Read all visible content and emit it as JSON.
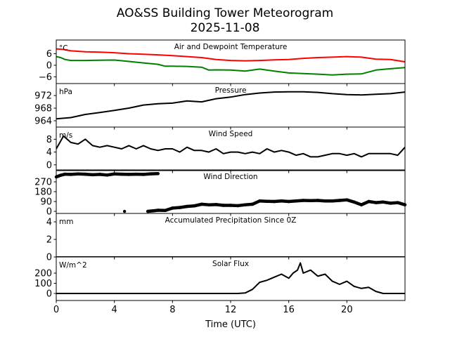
{
  "title": "AO&SS Building Tower Meteorogram",
  "subtitle": "2025-11-08",
  "chart_data": {
    "type": "line",
    "xlabel": "Time (UTC)",
    "xlim": [
      0,
      24
    ],
    "xticks": [
      0,
      4,
      8,
      12,
      16,
      20
    ],
    "xtick_labels": [
      "0",
      "4",
      "8",
      "12",
      "16",
      "20"
    ],
    "panels": [
      {
        "title": "Air and Dewpoint Temperature",
        "unit": "°C",
        "ylim": [
          -9.5,
          13.1
        ],
        "yticks": [
          6,
          0,
          -6
        ],
        "ytick_labels": [
          "6",
          "0",
          "−6"
        ],
        "series": [
          {
            "name": "Air Temperature",
            "color": "#ff0000",
            "x": [
              0,
              0.5,
              1,
              2,
              3,
              4,
              5,
              6,
              7,
              8,
              9,
              10,
              11,
              12,
              13,
              14,
              15,
              16,
              17,
              18,
              19,
              20,
              21,
              22,
              23,
              24
            ],
            "y": [
              8.5,
              8.2,
              7.5,
              7,
              6.8,
              6.5,
              6,
              5.7,
              5.4,
              5,
              4.5,
              4,
              3,
              2.5,
              2.3,
              2.5,
              2.8,
              3,
              3.6,
              4,
              4.2,
              4.5,
              4.2,
              3.2,
              3,
              1.8
            ]
          },
          {
            "name": "Dewpoint",
            "color": "#008000",
            "x": [
              0,
              0.3,
              0.6,
              1,
              2,
              3,
              4,
              5,
              6,
              7,
              7.5,
              8,
              9,
              10,
              10.5,
              11,
              12,
              13,
              14,
              15,
              16,
              17,
              18,
              19,
              20,
              21,
              22,
              23,
              24
            ],
            "y": [
              4.5,
              4,
              3,
              2.5,
              2.5,
              2.6,
              2.7,
              2,
              1.2,
              0.5,
              -0.5,
              -0.5,
              -0.6,
              -1,
              -2.5,
              -2.4,
              -2.5,
              -3,
              -2,
              -3,
              -4,
              -4.3,
              -4.6,
              -5,
              -4.6,
              -4.5,
              -2.5,
              -1.8,
              -1.2
            ]
          }
        ]
      },
      {
        "title": "Pressure",
        "unit": "hPa",
        "ylim": [
          962,
          975.8
        ],
        "yticks": [
          972,
          968,
          964
        ],
        "ytick_labels": [
          "972",
          "968",
          "964"
        ],
        "series": [
          {
            "name": "Pressure",
            "color": "#000000",
            "x": [
              0,
              1,
              2,
              3,
              4,
              5,
              6,
              7,
              8,
              9,
              10,
              11,
              12,
              13,
              14,
              15,
              16,
              17,
              18,
              19,
              20,
              21,
              22,
              23,
              24
            ],
            "y": [
              964.6,
              965,
              966,
              966.6,
              967.3,
              968,
              969,
              969.4,
              969.6,
              970.3,
              970,
              971,
              971.5,
              972.3,
              972.8,
              973.1,
              973.2,
              973.2,
              973,
              972.6,
              972.3,
              972.2,
              972.4,
              972.6,
              973.1
            ]
          }
        ]
      },
      {
        "title": "Wind Speed",
        "unit": "m/s",
        "ylim": [
          -1.8,
          11.8
        ],
        "yticks": [
          8,
          4,
          0
        ],
        "ytick_labels": [
          "8",
          "4",
          "0"
        ],
        "series": [
          {
            "name": "Wind Speed",
            "color": "#000000",
            "x": [
              0,
              0.5,
              1,
              1.5,
              2,
              2.5,
              3,
              3.5,
              4,
              4.5,
              5,
              5.5,
              6,
              6.5,
              7,
              7.5,
              8,
              8.5,
              9,
              9.5,
              10,
              10.5,
              11,
              11.5,
              12,
              12.5,
              13,
              13.5,
              14,
              14.5,
              15,
              15.5,
              16,
              16.5,
              17,
              17.5,
              18,
              18.5,
              19,
              19.5,
              20,
              20.5,
              21,
              21.5,
              22,
              22.5,
              23,
              23.5,
              24
            ],
            "y": [
              5,
              9,
              7,
              6.5,
              8,
              6,
              5.5,
              6,
              5.5,
              5,
              6,
              5,
              6,
              5,
              4.5,
              5,
              5,
              4,
              5.5,
              4.5,
              4.5,
              4,
              5,
              3.5,
              4,
              4,
              3.5,
              4,
              3.5,
              5,
              4,
              4.5,
              4,
              3,
              3.5,
              2.5,
              2.5,
              3,
              3.5,
              3.5,
              3,
              3.5,
              2.5,
              3.5,
              3.5,
              3.5,
              3.5,
              3,
              5.5
            ]
          }
        ]
      },
      {
        "title": "Wind Direction",
        "unit": "",
        "ylim": [
          -19,
          379
        ],
        "yticks": [
          270,
          180,
          90,
          0
        ],
        "ytick_labels": [
          "270",
          "180",
          "90",
          "0"
        ],
        "style": "scatter",
        "series": [
          {
            "name": "Wind Direction",
            "color": "#000000",
            "x": [
              0,
              0.3,
              0.6,
              1,
              1.5,
              2,
              2.5,
              3,
              3.5,
              4,
              4.5,
              5,
              5.5,
              6,
              6.5,
              7,
              4.7,
              6.3,
              6.7,
              7,
              7.5,
              8,
              8.5,
              9,
              9.5,
              10,
              10.5,
              11,
              11.5,
              12,
              12.5,
              13,
              13.5,
              14,
              14.5,
              15,
              15.5,
              16,
              16.5,
              17,
              17.5,
              18,
              18.5,
              19,
              19.5,
              20,
              20.5,
              21,
              21.5,
              22,
              22.5,
              23,
              23.5,
              24
            ],
            "y": [
              315,
              330,
              340,
              338,
              342,
              340,
              335,
              338,
              332,
              342,
              340,
              338,
              340,
              338,
              343,
              345,
              0,
              0,
              5,
              10,
              8,
              30,
              35,
              45,
              50,
              65,
              60,
              62,
              55,
              55,
              52,
              60,
              65,
              95,
              92,
              90,
              95,
              90,
              95,
              100,
              98,
              100,
              95,
              95,
              100,
              105,
              85,
              60,
              90,
              80,
              85,
              75,
              80,
              60
            ]
          }
        ]
      },
      {
        "title": "Accumulated Precipitation Since 0Z",
        "unit": "mm",
        "ylim": [
          0,
          4.96
        ],
        "yticks": [
          4,
          2,
          0
        ],
        "ytick_labels": [
          "4",
          "2",
          "0"
        ],
        "series": [
          {
            "name": "Precipitation",
            "color": "#000000",
            "x": [
              0,
              24
            ],
            "y": [
              0,
              0
            ]
          }
        ]
      },
      {
        "title": "Solar Flux",
        "unit": "W/m^2",
        "ylim": [
          -69,
          359
        ],
        "yticks": [
          200,
          100,
          0
        ],
        "ytick_labels": [
          "200",
          "100",
          "0"
        ],
        "series": [
          {
            "name": "Solar Flux",
            "color": "#000000",
            "x": [
              0,
              12.5,
              13,
              13.5,
              14,
              14.5,
              15,
              15.5,
              16,
              16.3,
              16.6,
              16.8,
              17,
              17.5,
              18,
              18.5,
              19,
              19.5,
              20,
              20.5,
              21,
              21.5,
              22,
              22.5,
              24
            ],
            "y": [
              0,
              0,
              5,
              40,
              110,
              130,
              160,
              190,
              150,
              200,
              230,
              300,
              200,
              230,
              170,
              190,
              120,
              90,
              120,
              70,
              50,
              60,
              20,
              0,
              0
            ]
          }
        ]
      }
    ]
  }
}
